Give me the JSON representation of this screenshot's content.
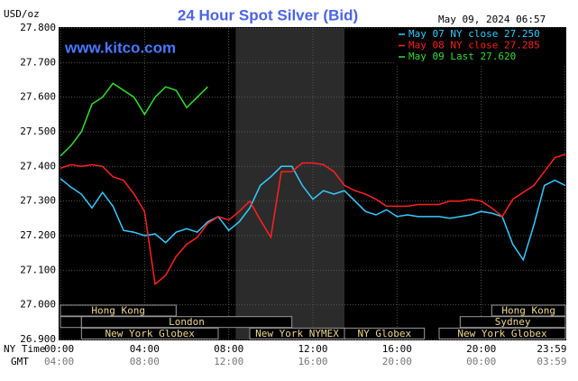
{
  "chart_data": {
    "type": "line",
    "title": "24 Hour Spot Silver (Bid)",
    "y_label": "USD/oz",
    "timestamp": "May 09, 2024 06:57",
    "watermark": "www.kitco.com",
    "x_axis_labels": [
      "NY Time",
      "GMT"
    ],
    "xlim": [
      0,
      24
    ],
    "ylim": [
      26.9,
      27.8
    ],
    "yticks": [
      {
        "value": 26.9,
        "label": "26.900"
      },
      {
        "value": 27.0,
        "label": "27.000"
      },
      {
        "value": 27.1,
        "label": "27.100"
      },
      {
        "value": 27.2,
        "label": "27.200"
      },
      {
        "value": 27.3,
        "label": "27.300"
      },
      {
        "value": 27.4,
        "label": "27.400"
      },
      {
        "value": 27.5,
        "label": "27.500"
      },
      {
        "value": 27.6,
        "label": "27.600"
      },
      {
        "value": 27.7,
        "label": "27.700"
      },
      {
        "value": 27.8,
        "label": "27.800"
      }
    ],
    "xticks": [
      {
        "value": 0,
        "label": "00:00"
      },
      {
        "value": 4,
        "label": "04:00"
      },
      {
        "value": 8,
        "label": "08:00"
      },
      {
        "value": 12,
        "label": "12:00"
      },
      {
        "value": 16,
        "label": "16:00"
      },
      {
        "value": 20,
        "label": "20:00"
      },
      {
        "value": 23.98,
        "label": "23:59"
      }
    ],
    "xticks_gmt": [
      {
        "value": 0,
        "label": "04:00"
      },
      {
        "value": 4,
        "label": "08:00"
      },
      {
        "value": 8,
        "label": "12:00"
      },
      {
        "value": 12,
        "label": "16:00"
      },
      {
        "value": 16,
        "label": "20:00"
      },
      {
        "value": 20,
        "label": "00:00"
      },
      {
        "value": 23.98,
        "label": "03:59"
      }
    ],
    "grid": true,
    "shaded_range": [
      8.33,
      13.5
    ],
    "sessions": [
      [
        {
          "name": "Hong Kong",
          "start": 0,
          "end": 5.5
        },
        {
          "name": "Hong Kong",
          "start": 20.5,
          "end": 24
        }
      ],
      [
        {
          "name": null,
          "start": 0,
          "end": 1
        },
        {
          "name": "London",
          "start": 1,
          "end": 11
        },
        {
          "name": "Sydney",
          "start": 19,
          "end": 24
        }
      ],
      [
        {
          "name": "New York Globex",
          "start": 1,
          "end": 7.5
        },
        {
          "name": "New York NYMEX",
          "start": 9,
          "end": 13.5
        },
        {
          "name": "NY Globex",
          "start": 13.5,
          "end": 17.3
        },
        {
          "name": "New York Globex",
          "start": 18,
          "end": 24
        }
      ]
    ],
    "x": [
      0,
      0.5,
      1,
      1.5,
      2,
      2.5,
      3,
      3.5,
      4,
      4.5,
      5,
      5.5,
      6,
      6.5,
      7,
      7.5,
      8,
      8.5,
      9,
      9.5,
      10,
      10.5,
      11,
      11.5,
      12,
      12.5,
      13,
      13.5,
      14,
      14.5,
      15,
      15.5,
      16,
      16.5,
      17,
      17.5,
      18,
      18.5,
      19,
      19.5,
      20,
      20.5,
      21,
      21.5,
      22,
      22.5,
      23,
      23.5,
      24
    ],
    "series": [
      {
        "name": "May 07 NY close 27.250",
        "color": "#33ccff",
        "values": [
          27.365,
          27.34,
          27.32,
          27.28,
          27.325,
          27.285,
          27.215,
          27.21,
          27.2,
          27.205,
          27.18,
          27.21,
          27.22,
          27.21,
          27.24,
          27.255,
          27.215,
          27.24,
          27.28,
          27.345,
          27.37,
          27.4,
          27.4,
          27.345,
          27.305,
          27.33,
          27.32,
          27.33,
          27.3,
          27.27,
          27.26,
          27.275,
          27.255,
          27.26,
          27.255,
          27.255,
          27.255,
          27.25,
          27.255,
          27.26,
          27.27,
          27.265,
          27.255,
          27.175,
          27.13,
          27.23,
          27.345,
          27.36,
          27.345
        ]
      },
      {
        "name": "May 08 NY close 27.285",
        "color": "#ff2020",
        "values": [
          27.395,
          27.405,
          27.4,
          27.405,
          27.4,
          27.37,
          27.36,
          27.32,
          27.27,
          27.06,
          27.085,
          27.14,
          27.175,
          27.195,
          27.235,
          27.255,
          27.245,
          27.27,
          27.3,
          27.245,
          27.195,
          27.385,
          27.385,
          27.41,
          27.41,
          27.405,
          27.385,
          27.345,
          27.33,
          27.32,
          27.305,
          27.285,
          27.285,
          27.285,
          27.29,
          27.29,
          27.29,
          27.3,
          27.3,
          27.305,
          27.3,
          27.28,
          27.255,
          27.305,
          27.325,
          27.345,
          27.385,
          27.425,
          27.435
        ]
      },
      {
        "name": "May 09 Last 27.620",
        "color": "#33dd33",
        "values": [
          27.43,
          27.46,
          27.5,
          27.58,
          27.6,
          27.64,
          27.62,
          27.6,
          27.55,
          27.6,
          27.63,
          27.62,
          27.57,
          27.6,
          27.63,
          null,
          null,
          null,
          null,
          null,
          null,
          null,
          null,
          null,
          null,
          null,
          null,
          null,
          null,
          null,
          null,
          null,
          null,
          null,
          null,
          null,
          null,
          null,
          null,
          null,
          null,
          null,
          null,
          null,
          null,
          null,
          null,
          null,
          null
        ]
      }
    ]
  }
}
